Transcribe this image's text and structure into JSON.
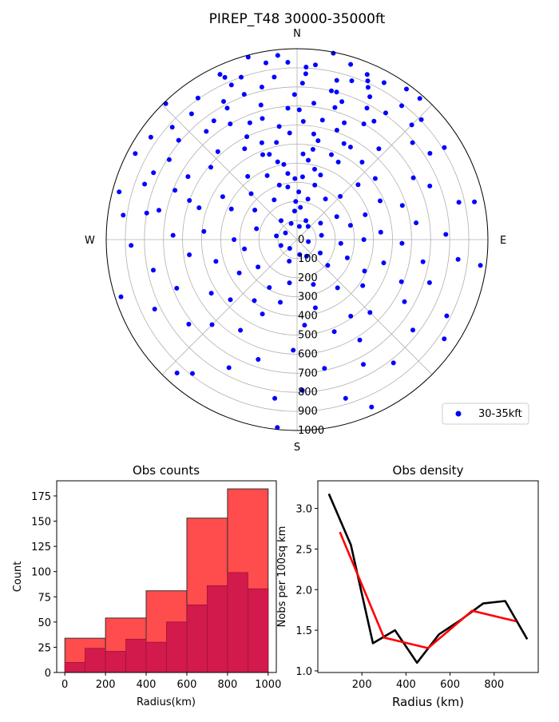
{
  "figure": {
    "title": "PIREP_T48 30000-35000ft"
  },
  "chart_data": [
    {
      "type": "scatter",
      "projection": "polar",
      "title": "PIREP_T48 30000-35000ft",
      "direction_labels": [
        "N",
        "E",
        "S",
        "W"
      ],
      "radial_ticks": [
        "0",
        "100",
        "200",
        "300",
        "400",
        "500",
        "600",
        "700",
        "800",
        "900",
        "1000"
      ],
      "rlim": [
        0,
        1000
      ],
      "grid": true,
      "legend": {
        "entries": [
          "30-35kft"
        ],
        "placement": "lower-right"
      },
      "series": [
        {
          "name": "30-35kft",
          "color": "#0000ff",
          "note": "polar points as [bearing_deg, radius_km], bearing clockwise from North",
          "points": [
            [
              10,
              70
            ],
            [
              25,
              110
            ],
            [
              40,
              90
            ],
            [
              55,
              150
            ],
            [
              80,
              130
            ],
            [
              100,
              60
            ],
            [
              120,
              140
            ],
            [
              150,
              100
            ],
            [
              170,
              80
            ],
            [
              200,
              120
            ],
            [
              220,
              60
            ],
            [
              250,
              90
            ],
            [
              280,
              110
            ],
            [
              300,
              70
            ],
            [
              320,
              130
            ],
            [
              340,
              90
            ],
            [
              355,
              150
            ],
            [
              15,
              220
            ],
            [
              35,
              260
            ],
            [
              60,
              240
            ],
            [
              75,
              290
            ],
            [
              95,
              230
            ],
            [
              110,
              280
            ],
            [
              130,
              210
            ],
            [
              160,
              250
            ],
            [
              190,
              230
            ],
            [
              210,
              290
            ],
            [
              235,
              250
            ],
            [
              260,
              280
            ],
            [
              285,
              220
            ],
            [
              305,
              270
            ],
            [
              330,
              240
            ],
            [
              350,
              280
            ],
            [
              5,
              330
            ],
            [
              20,
              360
            ],
            [
              45,
              320
            ],
            [
              70,
              380
            ],
            [
              90,
              350
            ],
            [
              115,
              390
            ],
            [
              140,
              330
            ],
            [
              165,
              370
            ],
            [
              195,
              340
            ],
            [
              215,
              390
            ],
            [
              240,
              350
            ],
            [
              270,
              330
            ],
            [
              295,
              380
            ],
            [
              315,
              340
            ],
            [
              335,
              370
            ],
            [
              358,
              320
            ],
            [
              8,
              420
            ],
            [
              28,
              460
            ],
            [
              48,
              430
            ],
            [
              65,
              480
            ],
            [
              85,
              440
            ],
            [
              105,
              470
            ],
            [
              125,
              420
            ],
            [
              145,
              490
            ],
            [
              175,
              450
            ],
            [
              205,
              430
            ],
            [
              228,
              470
            ],
            [
              255,
              440
            ],
            [
              275,
              490
            ],
            [
              300,
              450
            ],
            [
              322,
              420
            ],
            [
              342,
              470
            ],
            [
              12,
              530
            ],
            [
              30,
              560
            ],
            [
              52,
              520
            ],
            [
              72,
              580
            ],
            [
              92,
              550
            ],
            [
              112,
              590
            ],
            [
              135,
              540
            ],
            [
              158,
              520
            ],
            [
              182,
              580
            ],
            [
              212,
              560
            ],
            [
              238,
              530
            ],
            [
              262,
              570
            ],
            [
              288,
              540
            ],
            [
              310,
              590
            ],
            [
              330,
              550
            ],
            [
              348,
              520
            ],
            [
              3,
              620
            ],
            [
              22,
              660
            ],
            [
              42,
              640
            ],
            [
              62,
              690
            ],
            [
              82,
              630
            ],
            [
              100,
              670
            ],
            [
              120,
              650
            ],
            [
              148,
              620
            ],
            [
              168,
              690
            ],
            [
              198,
              660
            ],
            [
              225,
              630
            ],
            [
              248,
              680
            ],
            [
              272,
              650
            ],
            [
              292,
              690
            ],
            [
              318,
              620
            ],
            [
              338,
              660
            ],
            [
              356,
              690
            ],
            [
              7,
              720
            ],
            [
              18,
              760
            ],
            [
              33,
              740
            ],
            [
              50,
              790
            ],
            [
              68,
              750
            ],
            [
              88,
              780
            ],
            [
              108,
              730
            ],
            [
              128,
              770
            ],
            [
              152,
              740
            ],
            [
              178,
              790
            ],
            [
              208,
              760
            ],
            [
              232,
              720
            ],
            [
              258,
              770
            ],
            [
              282,
              740
            ],
            [
              302,
              790
            ],
            [
              325,
              760
            ],
            [
              345,
              730
            ],
            [
              2,
              820
            ],
            [
              14,
              860
            ],
            [
              27,
              840
            ],
            [
              38,
              890
            ],
            [
              57,
              830
            ],
            [
              77,
              870
            ],
            [
              97,
              850
            ],
            [
              117,
              880
            ],
            [
              142,
              820
            ],
            [
              163,
              870
            ],
            [
              188,
              840
            ],
            [
              218,
              890
            ],
            [
              244,
              830
            ],
            [
              268,
              870
            ],
            [
              290,
              850
            ],
            [
              312,
              880
            ],
            [
              332,
              820
            ],
            [
              352,
              860
            ],
            [
              6,
              920
            ],
            [
              17,
              960
            ],
            [
              29,
              940
            ],
            [
              41,
              980
            ],
            [
              58,
              910
            ],
            [
              78,
              950
            ],
            [
              98,
              970
            ],
            [
              124,
              930
            ],
            [
              156,
              960
            ],
            [
              186,
              990
            ],
            [
              222,
              940
            ],
            [
              252,
              970
            ],
            [
              278,
              920
            ],
            [
              298,
              960
            ],
            [
              316,
              990
            ],
            [
              336,
              930
            ],
            [
              354,
              970
            ],
            [
              11,
              995
            ],
            [
              24,
              910
            ],
            [
              36,
              975
            ],
            [
              46,
              905
            ],
            [
              335,
              955
            ],
            [
              325,
              905
            ],
            [
              305,
              935
            ],
            [
              285,
              965
            ],
            [
              345,
              990
            ],
            [
              3,
              905
            ],
            [
              350,
              940
            ],
            [
              340,
              810
            ],
            [
              320,
              860
            ],
            [
              310,
              810
            ],
            [
              295,
              830
            ],
            [
              280,
              800
            ],
            [
              15,
              800
            ],
            [
              25,
              880
            ],
            [
              35,
              810
            ],
            [
              45,
              850
            ],
            [
              12,
              640
            ],
            [
              330,
              700
            ],
            [
              320,
              740
            ],
            [
              300,
              660
            ],
            [
              290,
              600
            ],
            [
              10,
              480
            ],
            [
              340,
              540
            ],
            [
              350,
              400
            ],
            [
              20,
              610
            ],
            [
              30,
              700
            ],
            [
              40,
              530
            ],
            [
              2,
              250
            ],
            [
              358,
              200
            ],
            [
              6,
              170
            ],
            [
              352,
              350
            ],
            [
              4,
              450
            ],
            [
              356,
              560
            ],
            [
              1,
              680
            ],
            [
              359,
              760
            ],
            [
              3,
              870
            ],
            [
              357,
              930
            ],
            [
              18,
              300
            ],
            [
              342,
              300
            ],
            [
              14,
              380
            ],
            [
              346,
              420
            ],
            [
              22,
              480
            ],
            [
              338,
              480
            ],
            [
              26,
              560
            ],
            [
              334,
              600
            ],
            [
              16,
              720
            ],
            [
              344,
              660
            ],
            [
              28,
              780
            ],
            [
              332,
              780
            ],
            [
              23,
              940
            ],
            [
              337,
              880
            ],
            [
              9,
              560
            ],
            [
              351,
              600
            ],
            [
              13,
              800
            ],
            [
              347,
              820
            ],
            [
              19,
              880
            ],
            [
              341,
              900
            ]
          ]
        }
      ]
    },
    {
      "type": "bar",
      "title": "Obs counts",
      "xlabel": "Radius(km)",
      "ylabel": "Count",
      "xlim": [
        -40,
        1040
      ],
      "ylim": [
        0,
        190
      ],
      "x_ticks": [
        "0",
        "200",
        "400",
        "600",
        "800",
        "1000"
      ],
      "y_ticks": [
        "0",
        "25",
        "50",
        "75",
        "100",
        "125",
        "150",
        "175"
      ],
      "series": [
        {
          "color": "#ff4c4c",
          "bin_edges": [
            0,
            200,
            400,
            600,
            800,
            1000
          ],
          "values": [
            34,
            54,
            81,
            153,
            182
          ]
        },
        {
          "color": "#d21a4c",
          "bin_edges": [
            0,
            100,
            200,
            300,
            400,
            500,
            600,
            700,
            800,
            900,
            1000
          ],
          "values": [
            10,
            24,
            21,
            33,
            30,
            50,
            67,
            86,
            99,
            83
          ]
        }
      ]
    },
    {
      "type": "line",
      "title": "Obs density",
      "xlabel": "Radius (km)",
      "ylabel": "Nobs per 100sq km",
      "xlim": [
        0,
        1000
      ],
      "ylim": [
        0.98,
        3.34
      ],
      "x_ticks": [
        "200",
        "400",
        "600",
        "800"
      ],
      "y_ticks": [
        "1.0",
        "1.5",
        "2.0",
        "2.5",
        "3.0"
      ],
      "series": [
        {
          "color": "#000000",
          "x": [
            50,
            150,
            250,
            350,
            450,
            550,
            650,
            750,
            850,
            950
          ],
          "values": [
            3.18,
            2.55,
            1.34,
            1.5,
            1.1,
            1.45,
            1.63,
            1.83,
            1.86,
            1.39
          ]
        },
        {
          "color": "#ff0000",
          "x": [
            100,
            300,
            500,
            700,
            900
          ],
          "values": [
            2.71,
            1.41,
            1.28,
            1.74,
            1.61
          ]
        }
      ]
    }
  ]
}
